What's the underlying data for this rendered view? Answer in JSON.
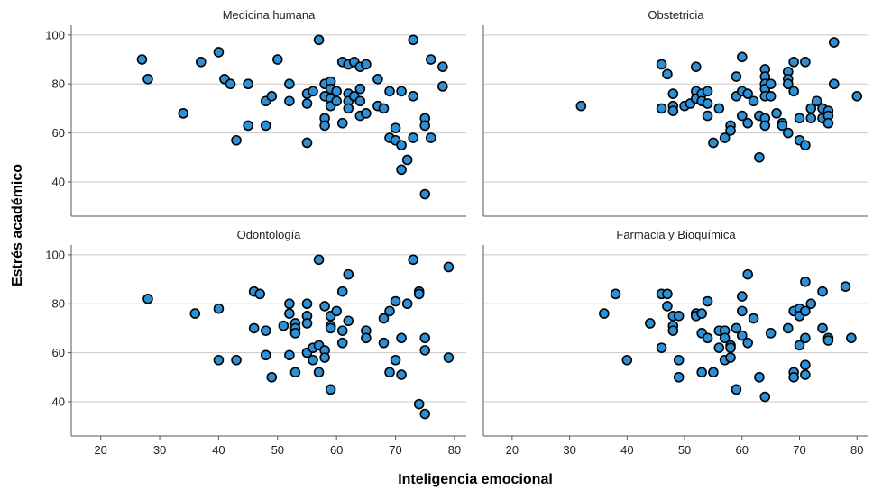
{
  "colors": {
    "point_fill": "#2d8fd5",
    "grid": "#c8c8c8"
  },
  "chart_data": {
    "type": "scatter",
    "xlabel": "Inteligencia emocional",
    "ylabel": "Estrés académico",
    "xlim": [
      15,
      82
    ],
    "ylim": [
      26,
      104
    ],
    "x_ticks": [
      20,
      30,
      40,
      50,
      60,
      70,
      80
    ],
    "y_ticks": [
      40,
      60,
      80,
      100
    ],
    "grid": "horizontal",
    "panels": [
      {
        "title": "Medicina humana",
        "points": [
          [
            27,
            90
          ],
          [
            28,
            82
          ],
          [
            34,
            68
          ],
          [
            37,
            89
          ],
          [
            40,
            93
          ],
          [
            41,
            82
          ],
          [
            42,
            80
          ],
          [
            43,
            57
          ],
          [
            45,
            80
          ],
          [
            45,
            63
          ],
          [
            48,
            73
          ],
          [
            48,
            63
          ],
          [
            49,
            75
          ],
          [
            50,
            90
          ],
          [
            52,
            80
          ],
          [
            52,
            73
          ],
          [
            55,
            76
          ],
          [
            55,
            72
          ],
          [
            55,
            56
          ],
          [
            56,
            77
          ],
          [
            57,
            98
          ],
          [
            58,
            80
          ],
          [
            58,
            75
          ],
          [
            58,
            66
          ],
          [
            58,
            63
          ],
          [
            59,
            81
          ],
          [
            59,
            78
          ],
          [
            59,
            74
          ],
          [
            59,
            71
          ],
          [
            60,
            77
          ],
          [
            60,
            73
          ],
          [
            61,
            89
          ],
          [
            61,
            64
          ],
          [
            62,
            88
          ],
          [
            62,
            76
          ],
          [
            62,
            73
          ],
          [
            62,
            70
          ],
          [
            63,
            89
          ],
          [
            63,
            75
          ],
          [
            64,
            87
          ],
          [
            64,
            78
          ],
          [
            64,
            73
          ],
          [
            64,
            67
          ],
          [
            65,
            88
          ],
          [
            65,
            68
          ],
          [
            67,
            82
          ],
          [
            67,
            71
          ],
          [
            68,
            70
          ],
          [
            69,
            77
          ],
          [
            69,
            58
          ],
          [
            70,
            62
          ],
          [
            70,
            57
          ],
          [
            71,
            77
          ],
          [
            71,
            55
          ],
          [
            71,
            45
          ],
          [
            72,
            49
          ],
          [
            73,
            98
          ],
          [
            73,
            75
          ],
          [
            73,
            58
          ],
          [
            75,
            66
          ],
          [
            75,
            63
          ],
          [
            75,
            35
          ],
          [
            76,
            90
          ],
          [
            76,
            58
          ],
          [
            78,
            87
          ],
          [
            78,
            79
          ]
        ]
      },
      {
        "title": "Obstetricia",
        "points": [
          [
            32,
            71
          ],
          [
            46,
            88
          ],
          [
            46,
            70
          ],
          [
            47,
            84
          ],
          [
            48,
            76
          ],
          [
            48,
            71
          ],
          [
            48,
            69
          ],
          [
            50,
            71
          ],
          [
            51,
            72
          ],
          [
            52,
            87
          ],
          [
            52,
            77
          ],
          [
            52,
            74
          ],
          [
            53,
            76
          ],
          [
            53,
            73
          ],
          [
            54,
            77
          ],
          [
            54,
            72
          ],
          [
            54,
            67
          ],
          [
            55,
            56
          ],
          [
            56,
            70
          ],
          [
            57,
            58
          ],
          [
            58,
            63
          ],
          [
            58,
            61
          ],
          [
            59,
            83
          ],
          [
            59,
            75
          ],
          [
            60,
            91
          ],
          [
            60,
            77
          ],
          [
            60,
            67
          ],
          [
            61,
            76
          ],
          [
            61,
            64
          ],
          [
            62,
            73
          ],
          [
            63,
            67
          ],
          [
            63,
            50
          ],
          [
            64,
            86
          ],
          [
            64,
            83
          ],
          [
            64,
            80
          ],
          [
            64,
            78
          ],
          [
            64,
            75
          ],
          [
            64,
            66
          ],
          [
            64,
            63
          ],
          [
            65,
            80
          ],
          [
            65,
            75
          ],
          [
            66,
            68
          ],
          [
            67,
            64
          ],
          [
            67,
            63
          ],
          [
            68,
            85
          ],
          [
            68,
            82
          ],
          [
            68,
            80
          ],
          [
            68,
            60
          ],
          [
            69,
            89
          ],
          [
            69,
            77
          ],
          [
            70,
            57
          ],
          [
            70,
            66
          ],
          [
            71,
            89
          ],
          [
            71,
            55
          ],
          [
            72,
            70
          ],
          [
            72,
            66
          ],
          [
            73,
            73
          ],
          [
            74,
            70
          ],
          [
            74,
            66
          ],
          [
            75,
            69
          ],
          [
            75,
            67
          ],
          [
            75,
            64
          ],
          [
            76,
            97
          ],
          [
            76,
            80
          ],
          [
            80,
            75
          ]
        ]
      },
      {
        "title": "Odontología",
        "points": [
          [
            28,
            82
          ],
          [
            36,
            76
          ],
          [
            40,
            78
          ],
          [
            40,
            57
          ],
          [
            43,
            57
          ],
          [
            46,
            85
          ],
          [
            46,
            70
          ],
          [
            47,
            84
          ],
          [
            48,
            69
          ],
          [
            48,
            59
          ],
          [
            49,
            50
          ],
          [
            51,
            71
          ],
          [
            52,
            80
          ],
          [
            52,
            76
          ],
          [
            52,
            59
          ],
          [
            53,
            72
          ],
          [
            53,
            70
          ],
          [
            53,
            68
          ],
          [
            53,
            52
          ],
          [
            55,
            80
          ],
          [
            55,
            75
          ],
          [
            55,
            72
          ],
          [
            55,
            60
          ],
          [
            56,
            62
          ],
          [
            56,
            57
          ],
          [
            57,
            98
          ],
          [
            57,
            63
          ],
          [
            57,
            52
          ],
          [
            58,
            79
          ],
          [
            58,
            61
          ],
          [
            58,
            58
          ],
          [
            59,
            75
          ],
          [
            59,
            71
          ],
          [
            59,
            70
          ],
          [
            59,
            45
          ],
          [
            60,
            77
          ],
          [
            61,
            85
          ],
          [
            61,
            69
          ],
          [
            61,
            64
          ],
          [
            62,
            92
          ],
          [
            62,
            73
          ],
          [
            65,
            69
          ],
          [
            65,
            66
          ],
          [
            68,
            74
          ],
          [
            68,
            64
          ],
          [
            69,
            77
          ],
          [
            69,
            52
          ],
          [
            70,
            81
          ],
          [
            70,
            57
          ],
          [
            71,
            66
          ],
          [
            71,
            51
          ],
          [
            72,
            80
          ],
          [
            73,
            98
          ],
          [
            74,
            85
          ],
          [
            74,
            84
          ],
          [
            74,
            39
          ],
          [
            75,
            66
          ],
          [
            75,
            61
          ],
          [
            75,
            35
          ],
          [
            79,
            95
          ],
          [
            79,
            58
          ]
        ]
      },
      {
        "title": "Farmacia y Bioquímica",
        "points": [
          [
            36,
            76
          ],
          [
            38,
            84
          ],
          [
            40,
            57
          ],
          [
            44,
            72
          ],
          [
            46,
            84
          ],
          [
            46,
            62
          ],
          [
            47,
            84
          ],
          [
            47,
            79
          ],
          [
            48,
            75
          ],
          [
            48,
            71
          ],
          [
            48,
            69
          ],
          [
            49,
            75
          ],
          [
            49,
            57
          ],
          [
            49,
            50
          ],
          [
            52,
            76
          ],
          [
            52,
            75
          ],
          [
            53,
            76
          ],
          [
            53,
            68
          ],
          [
            53,
            52
          ],
          [
            54,
            81
          ],
          [
            54,
            66
          ],
          [
            55,
            52
          ],
          [
            56,
            69
          ],
          [
            56,
            62
          ],
          [
            57,
            69
          ],
          [
            57,
            66
          ],
          [
            57,
            57
          ],
          [
            58,
            63
          ],
          [
            58,
            58
          ],
          [
            58,
            62
          ],
          [
            59,
            70
          ],
          [
            59,
            45
          ],
          [
            60,
            83
          ],
          [
            60,
            77
          ],
          [
            60,
            67
          ],
          [
            61,
            92
          ],
          [
            61,
            64
          ],
          [
            62,
            74
          ],
          [
            63,
            50
          ],
          [
            64,
            42
          ],
          [
            65,
            68
          ],
          [
            68,
            70
          ],
          [
            69,
            77
          ],
          [
            69,
            52
          ],
          [
            69,
            50
          ],
          [
            70,
            78
          ],
          [
            70,
            75
          ],
          [
            70,
            63
          ],
          [
            71,
            89
          ],
          [
            71,
            77
          ],
          [
            71,
            66
          ],
          [
            71,
            55
          ],
          [
            71,
            51
          ],
          [
            72,
            80
          ],
          [
            74,
            85
          ],
          [
            74,
            70
          ],
          [
            75,
            66
          ],
          [
            75,
            65
          ],
          [
            78,
            87
          ],
          [
            79,
            66
          ]
        ]
      }
    ]
  }
}
